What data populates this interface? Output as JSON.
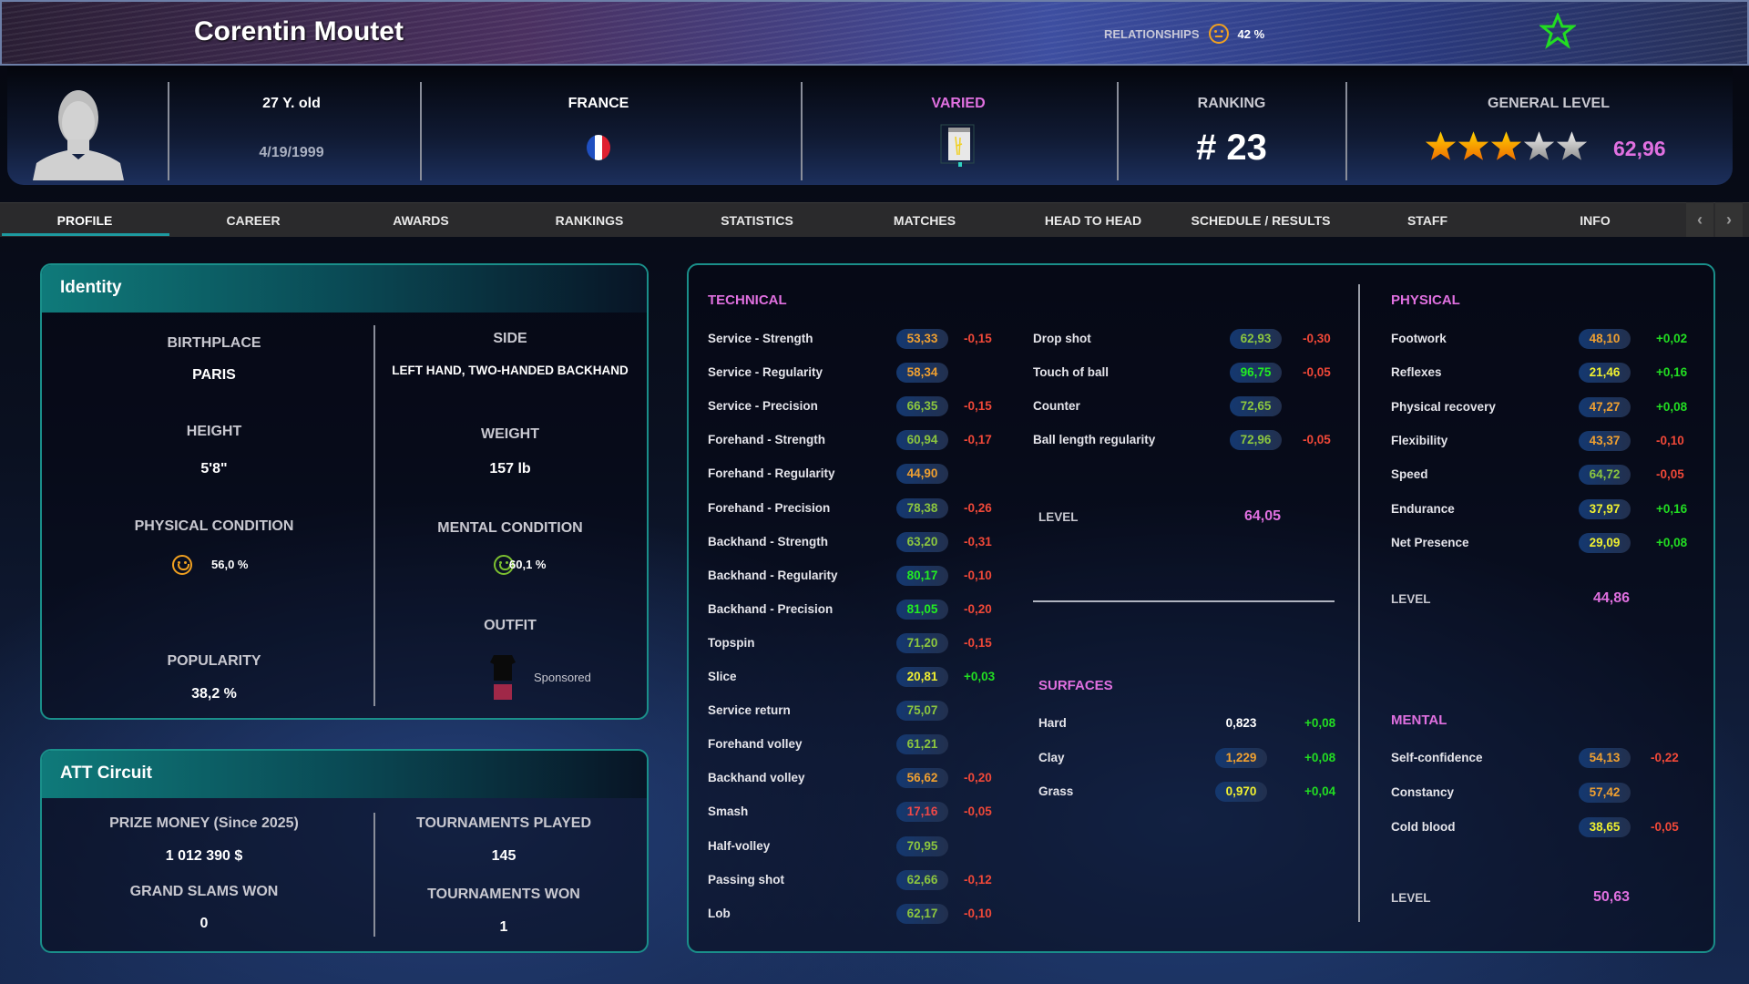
{
  "player": {
    "name": "Corentin Moutet",
    "favorite_icon": "star-outline-icon"
  },
  "relationships": {
    "label": "RELATIONSHIPS",
    "value": "42 %",
    "mood_icon": "neutral-face-icon",
    "mood_color": "#f0a020"
  },
  "info": {
    "age": "27 Y. old",
    "birthdate": "4/19/1999",
    "country": "FRANCE",
    "play_style": "VARIED",
    "play_style_color": "#e070e0",
    "ranking_label": "RANKING",
    "ranking": "# 23",
    "general_level_label": "GENERAL LEVEL",
    "general_level": "62,96",
    "stars": 3,
    "stars_max": 5
  },
  "tabs": [
    "PROFILE",
    "CAREER",
    "AWARDS",
    "RANKINGS",
    "STATISTICS",
    "MATCHES",
    "HEAD TO HEAD",
    "SCHEDULE / RESULTS",
    "STAFF",
    "INFO"
  ],
  "active_tab": "PROFILE",
  "nav": {
    "prev": "‹",
    "next": "›"
  },
  "identity": {
    "title": "Identity",
    "birthplace_label": "BIRTHPLACE",
    "birthplace": "PARIS",
    "side_label": "SIDE",
    "side": "LEFT HAND, TWO-HANDED BACKHAND",
    "height_label": "HEIGHT",
    "height": "5'8\"",
    "weight_label": "WEIGHT",
    "weight": "157 lb",
    "physical_label": "PHYSICAL CONDITION",
    "physical": "56,0 %",
    "physical_color": "#f0a020",
    "mental_label": "MENTAL CONDITION",
    "mental": "60,1 %",
    "mental_color": "#7cc030",
    "popularity_label": "POPULARITY",
    "popularity": "38,2 %",
    "outfit_label": "OUTFIT",
    "outfit": "Sponsored"
  },
  "circuit": {
    "title": "ATT Circuit",
    "prize_label": "PRIZE MONEY (Since 2025)",
    "prize": "1 012 390 $",
    "played_label": "TOURNAMENTS PLAYED",
    "played": "145",
    "slams_label": "GRAND SLAMS WON",
    "slams": "0",
    "won_label": "TOURNAMENTS WON",
    "won": "1"
  },
  "technical": {
    "title": "TECHNICAL",
    "level_label": "LEVEL",
    "level": "64,05",
    "col1": [
      {
        "label": "Service - Strength",
        "value": "53,33",
        "color": "#f0a030",
        "delta": "-0,15"
      },
      {
        "label": "Service - Regularity",
        "value": "58,34",
        "color": "#f0a030",
        "delta": ""
      },
      {
        "label": "Service - Precision",
        "value": "66,35",
        "color": "#8cc63f",
        "delta": "-0,15"
      },
      {
        "label": "Forehand - Strength",
        "value": "60,94",
        "color": "#8cc63f",
        "delta": "-0,17"
      },
      {
        "label": "Forehand - Regularity",
        "value": "44,90",
        "color": "#f0a030",
        "delta": ""
      },
      {
        "label": "Forehand - Precision",
        "value": "78,38",
        "color": "#8cc63f",
        "delta": "-0,26"
      },
      {
        "label": "Backhand - Strength",
        "value": "63,20",
        "color": "#8cc63f",
        "delta": "-0,31"
      },
      {
        "label": "Backhand - Regularity",
        "value": "80,17",
        "color": "#22ee22",
        "delta": "-0,10"
      },
      {
        "label": "Backhand - Precision",
        "value": "81,05",
        "color": "#22ee22",
        "delta": "-0,20"
      },
      {
        "label": "Topspin",
        "value": "71,20",
        "color": "#8cc63f",
        "delta": "-0,15"
      },
      {
        "label": "Slice",
        "value": "20,81",
        "color": "#f0f030",
        "delta": "+0,03"
      },
      {
        "label": "Service return",
        "value": "75,07",
        "color": "#8cc63f",
        "delta": ""
      },
      {
        "label": "Forehand volley",
        "value": "61,21",
        "color": "#8cc63f",
        "delta": ""
      },
      {
        "label": "Backhand volley",
        "value": "56,62",
        "color": "#f0a030",
        "delta": "-0,20"
      },
      {
        "label": "Smash",
        "value": "17,16",
        "color": "#f04848",
        "delta": "-0,05"
      },
      {
        "label": "Half-volley",
        "value": "70,95",
        "color": "#8cc63f",
        "delta": ""
      },
      {
        "label": "Passing shot",
        "value": "62,66",
        "color": "#8cc63f",
        "delta": "-0,12"
      },
      {
        "label": "Lob",
        "value": "62,17",
        "color": "#8cc63f",
        "delta": "-0,10"
      }
    ],
    "col2": [
      {
        "label": "Drop shot",
        "value": "62,93",
        "color": "#8cc63f",
        "delta": "-0,30"
      },
      {
        "label": "Touch of ball",
        "value": "96,75",
        "color": "#22ee22",
        "delta": "-0,05"
      },
      {
        "label": "Counter",
        "value": "72,65",
        "color": "#8cc63f",
        "delta": ""
      },
      {
        "label": "Ball length regularity",
        "value": "72,96",
        "color": "#8cc63f",
        "delta": "-0,05"
      }
    ]
  },
  "surfaces": {
    "title": "SURFACES",
    "rows": [
      {
        "label": "Hard",
        "value": "0,823",
        "color": "#ffffff",
        "delta": "+0,08",
        "badge": false
      },
      {
        "label": "Clay",
        "value": "1,229",
        "color": "#f0a030",
        "delta": "+0,08",
        "badge": true
      },
      {
        "label": "Grass",
        "value": "0,970",
        "color": "#f0f030",
        "delta": "+0,04",
        "badge": true
      }
    ]
  },
  "physical": {
    "title": "PHYSICAL",
    "level_label": "LEVEL",
    "level": "44,86",
    "rows": [
      {
        "label": "Footwork",
        "value": "48,10",
        "color": "#f0a030",
        "delta": "+0,02"
      },
      {
        "label": "Reflexes",
        "value": "21,46",
        "color": "#f0f030",
        "delta": "+0,16"
      },
      {
        "label": "Physical recovery",
        "value": "47,27",
        "color": "#f0a030",
        "delta": "+0,08"
      },
      {
        "label": "Flexibility",
        "value": "43,37",
        "color": "#f0a030",
        "delta": "-0,10"
      },
      {
        "label": "Speed",
        "value": "64,72",
        "color": "#8cc63f",
        "delta": "-0,05"
      },
      {
        "label": "Endurance",
        "value": "37,97",
        "color": "#f0f030",
        "delta": "+0,16"
      },
      {
        "label": "Net Presence",
        "value": "29,09",
        "color": "#f0f030",
        "delta": "+0,08"
      }
    ]
  },
  "mental": {
    "title": "MENTAL",
    "level_label": "LEVEL",
    "level": "50,63",
    "rows": [
      {
        "label": "Self-confidence",
        "value": "54,13",
        "color": "#f0a030",
        "delta": "-0,22"
      },
      {
        "label": "Constancy",
        "value": "57,42",
        "color": "#f0a030",
        "delta": ""
      },
      {
        "label": "Cold blood",
        "value": "38,65",
        "color": "#f0f030",
        "delta": "-0,05"
      }
    ]
  },
  "colors": {
    "accent": "#1a8f8a",
    "section": "#e070e0",
    "positive": "#22dd22",
    "negative": "#f04838"
  }
}
